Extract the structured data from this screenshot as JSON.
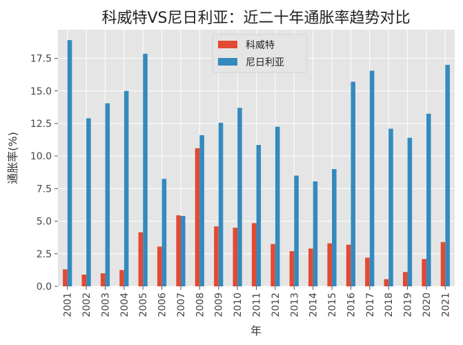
{
  "chart_data": {
    "type": "bar",
    "title": "科威特VS尼日利亚：近二十年通胀率趋势对比",
    "xlabel": "年",
    "ylabel": "通胀率(%)",
    "ylim": [
      0,
      19.7
    ],
    "yticks": [
      0.0,
      2.5,
      5.0,
      7.5,
      10.0,
      12.5,
      15.0,
      17.5
    ],
    "ytick_labels": [
      "0.0",
      "2.5",
      "5.0",
      "7.5",
      "10.0",
      "12.5",
      "15.0",
      "17.5"
    ],
    "grid": true,
    "legend_position": "top-center",
    "categories": [
      "2001",
      "2002",
      "2003",
      "2004",
      "2005",
      "2006",
      "2007",
      "2008",
      "2009",
      "2010",
      "2011",
      "2012",
      "2013",
      "2014",
      "2015",
      "2016",
      "2017",
      "2018",
      "2019",
      "2020",
      "2021"
    ],
    "series": [
      {
        "name": "科威特",
        "color": "#E24A33",
        "values": [
          1.3,
          0.9,
          1.0,
          1.25,
          4.15,
          3.05,
          5.45,
          10.6,
          4.6,
          4.5,
          4.85,
          3.25,
          2.7,
          2.9,
          3.3,
          3.2,
          2.2,
          0.55,
          1.1,
          2.1,
          3.4
        ]
      },
      {
        "name": "尼日利亚",
        "color": "#348ABD",
        "values": [
          18.9,
          12.9,
          14.05,
          15.0,
          17.85,
          8.25,
          5.4,
          11.6,
          12.55,
          13.7,
          10.85,
          12.25,
          8.5,
          8.05,
          9.0,
          15.7,
          16.55,
          12.1,
          11.4,
          13.25,
          17.0
        ]
      }
    ]
  }
}
